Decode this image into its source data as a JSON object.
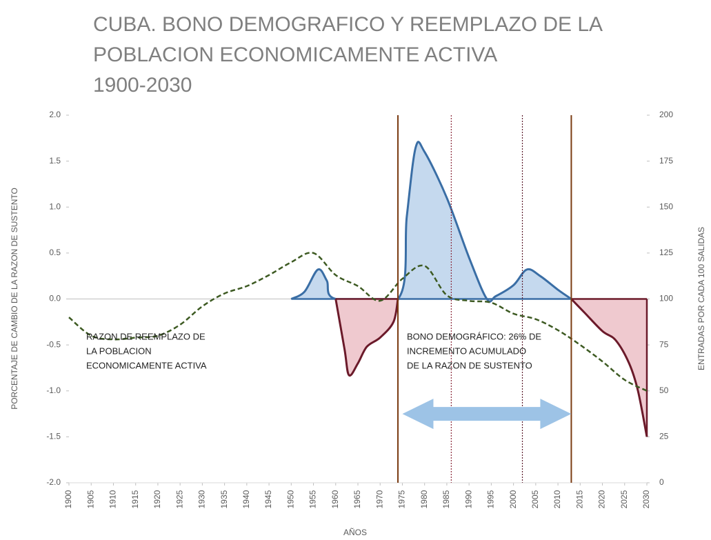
{
  "chart_data": {
    "type": "line",
    "title": [
      "CUBA. BONO DEMOGRAFICO Y REEMPLAZO DE LA",
      "POBLACION ECONOMICAMENTE ACTIVA",
      "1900-2030"
    ],
    "xlabel": "AÑOS",
    "ylabel": "PORCENTAJE  DE CAMBIO DE LA RAZON DE SUSTENTO",
    "y2label": "ENTRADAS  POR CADA 100 SALIDAS",
    "xlim": [
      1900,
      2030
    ],
    "xticks": [
      1900,
      1905,
      1910,
      1915,
      1920,
      1925,
      1930,
      1935,
      1940,
      1945,
      1950,
      1955,
      1960,
      1965,
      1970,
      1975,
      1980,
      1985,
      1990,
      1995,
      2000,
      2005,
      2010,
      2015,
      2020,
      2025,
      2030
    ],
    "ylim": [
      -2,
      2
    ],
    "yticks": [
      {
        "value": 2,
        "label": "2.0"
      },
      1.5,
      {
        "value": 1,
        "label": "1.0"
      },
      0.5,
      {
        "value": 0,
        "label": "0.0"
      },
      -0.5,
      {
        "value": -1,
        "label": "-1.0"
      },
      -1.5,
      {
        "value": -2,
        "label": "-2.0"
      }
    ],
    "y2lim": [
      0,
      200
    ],
    "y2ticks": [
      200,
      175,
      150,
      125,
      100,
      75,
      50,
      25,
      0
    ],
    "series": [
      {
        "color": "#3a6ea5",
        "fill": "#c5d9ee",
        "area": true,
        "x": [
          1950,
          1953,
          1956,
          1958,
          1960,
          1974,
          1976,
          1978,
          1980,
          1985,
          1990,
          1994,
          1996,
          2000,
          2003,
          2006,
          2010,
          2013
        ],
        "values": [
          0,
          0.08,
          0.32,
          0.2,
          0,
          0,
          0.9,
          1.65,
          1.6,
          1.1,
          0.45,
          0,
          0.03,
          0.15,
          0.32,
          0.25,
          0.1,
          0
        ]
      },
      {
        "color": "#6b1a2a",
        "fill": "#efc9cf",
        "area": true,
        "x": [
          1960,
          1962,
          1963,
          1965,
          1967,
          1970,
          1973,
          1974,
          null,
          2013,
          2016,
          2020,
          2023,
          2026,
          2028,
          2030
        ],
        "values": [
          0,
          -0.55,
          -0.83,
          -0.7,
          -0.52,
          -0.42,
          -0.25,
          0,
          null,
          0,
          -0.15,
          -0.35,
          -0.45,
          -0.7,
          -1.0,
          -1.5
        ]
      },
      {
        "color": "#3d5a22",
        "dash": true,
        "axis": "y2",
        "x": [
          1900,
          1905,
          1910,
          1915,
          1920,
          1925,
          1930,
          1935,
          1940,
          1945,
          1950,
          1955,
          1960,
          1965,
          1970,
          1975,
          1980,
          1985,
          1990,
          1995,
          2000,
          2005,
          2010,
          2015,
          2020,
          2025,
          2030
        ],
        "values": [
          90,
          80,
          78,
          79,
          80,
          86,
          96,
          103,
          107,
          113,
          120,
          125,
          113,
          107,
          99,
          111,
          118,
          102,
          99,
          98,
          92,
          89,
          83,
          75,
          66,
          56,
          50
        ]
      }
    ],
    "vertical_lines": [
      {
        "x": 1974,
        "color": "#7a3b12",
        "style": "solid"
      },
      {
        "x": 1986,
        "color": "#8b2a3a",
        "style": "dotted"
      },
      {
        "x": 2002,
        "color": "#5a1a2a",
        "style": "dotted"
      },
      {
        "x": 2013,
        "color": "#7a3b12",
        "style": "solid"
      }
    ],
    "annotations": [
      [
        "RAZON DE REEMPLAZO DE",
        "LA POBLACION",
        "ECONOMICAMENTE  ACTIVA"
      ],
      [
        "BONO DEMOGRÁFICO: 26% DE",
        "INCREMENTO ACUMULADO",
        "DE LA RAZON DE SUSTENTO"
      ]
    ],
    "arrow": {
      "x": [
        1975,
        2013
      ],
      "y": -1.25,
      "color": "#9dc3e6"
    }
  }
}
